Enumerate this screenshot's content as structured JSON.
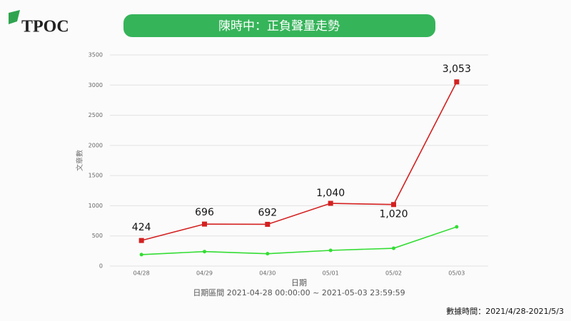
{
  "logo": "TPOC",
  "footer": "數據時間：2021/4/28-2021/5/3",
  "chart_data": {
    "type": "line",
    "title": "陳時中：正負聲量走勢",
    "y_label": "文章數",
    "x_label": "日期",
    "subtitle": "日期區間 2021-04-28 00:00:00 ~ 2021-05-03 23:59:59",
    "categories": [
      "04/28",
      "04/29",
      "04/30",
      "05/01",
      "05/02",
      "05/03"
    ],
    "series": [
      {
        "color": "#d42020",
        "values": [
          424,
          696,
          692,
          1040,
          1020,
          3053
        ],
        "value_labels": [
          "424",
          "696",
          "692",
          "1,040",
          "1,020",
          "3,053"
        ]
      },
      {
        "color": "#33dd33",
        "values": [
          190,
          240,
          205,
          260,
          295,
          650
        ]
      }
    ],
    "ylim": [
      0,
      3500
    ],
    "yticks": [
      0,
      500,
      1000,
      1500,
      2000,
      2500,
      3000,
      3500
    ],
    "grid": true
  }
}
